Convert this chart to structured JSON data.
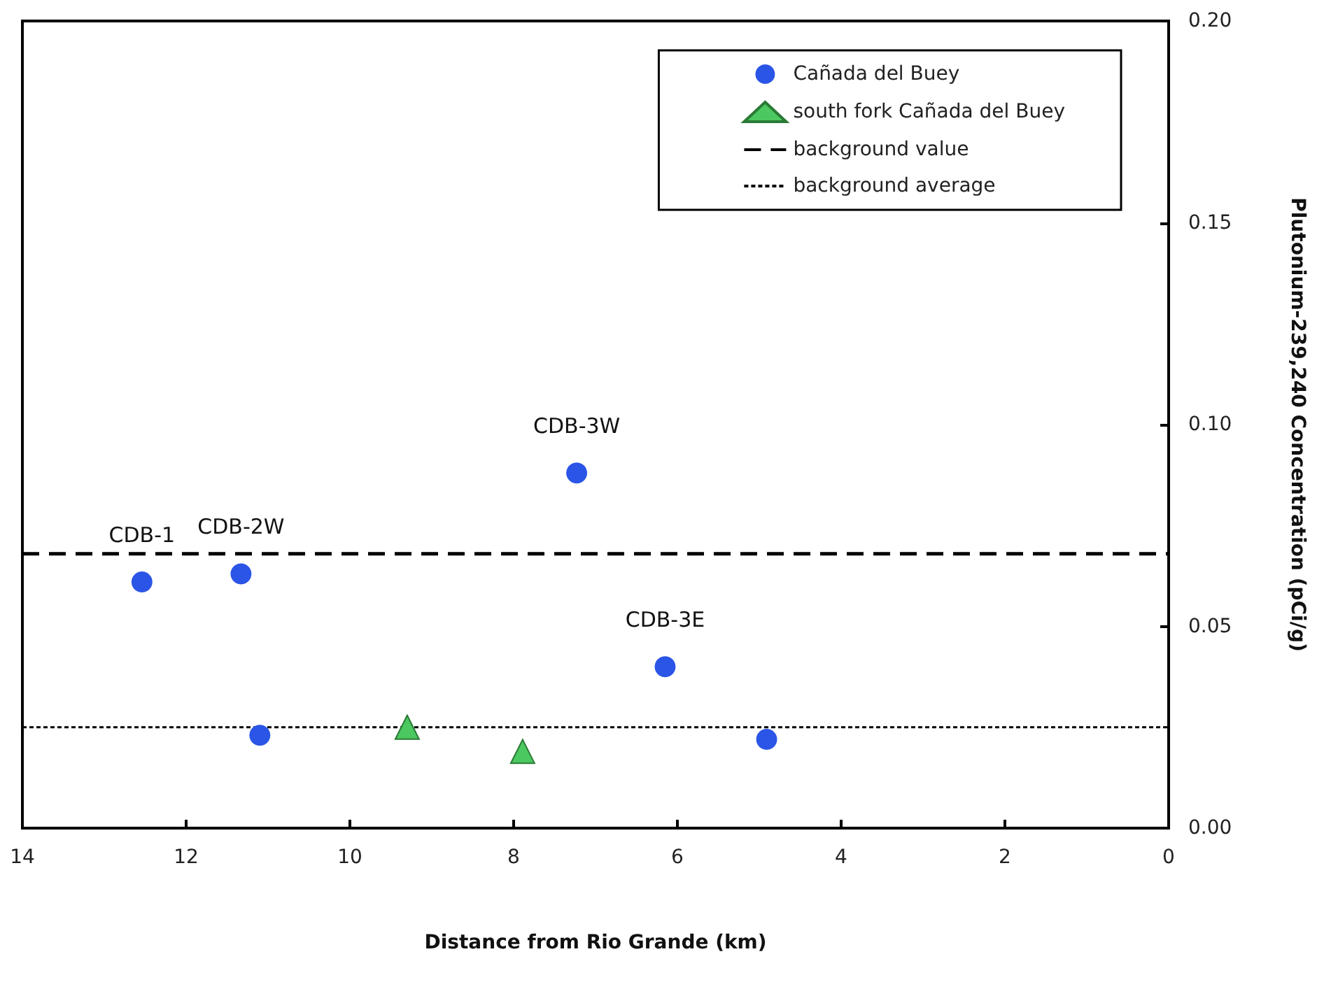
{
  "chart_data": {
    "type": "scatter",
    "xlabel": "Distance from Rio Grande (km)",
    "ylabel": "Plutonium-239,240 Concentration (pCi/g)",
    "xlim": [
      14,
      0
    ],
    "xticks": [
      14,
      12,
      10,
      8,
      6,
      4,
      2,
      0
    ],
    "ylim": [
      0,
      0.2
    ],
    "yticks": [
      {
        "value": 0,
        "label": "0.00"
      },
      {
        "value": 0.05,
        "label": "0.05"
      },
      {
        "value": 0.1,
        "label": "0.10"
      },
      {
        "value": 0.15,
        "label": "0.15"
      },
      {
        "value": 0.2,
        "label": "0.20"
      }
    ],
    "grid": false,
    "legend": "top right",
    "series": [
      {
        "name": "Cañada del Buey",
        "color": "#2b55e6",
        "marker": "circle",
        "x": [
          12.54,
          11.33,
          11.1,
          7.23,
          6.15,
          4.91
        ],
        "values": [
          0.061,
          0.063,
          0.023,
          0.088,
          0.04,
          0.022
        ]
      },
      {
        "name": "south fork Cañada del Buey",
        "color": "#4cc860",
        "marker": "triangle",
        "x": [
          9.3,
          7.89
        ],
        "values": [
          0.025,
          0.019
        ]
      }
    ],
    "ref_lines": [
      {
        "axis": "y",
        "value": 0.068,
        "label": "background value",
        "line_style": "dashed",
        "color": "#000000"
      },
      {
        "axis": "y",
        "value": 0.025,
        "label": "background average",
        "line_style": "dotted",
        "color": "#000000"
      }
    ],
    "annotations": [
      {
        "text": "CDB-1",
        "x": 12.54,
        "y": 0.061
      },
      {
        "text": "CDB-2W",
        "x": 11.33,
        "y": 0.063
      },
      {
        "text": "CDB-3W",
        "x": 7.23,
        "y": 0.088
      },
      {
        "text": "CDB-3E",
        "x": 6.15,
        "y": 0.04
      }
    ]
  }
}
